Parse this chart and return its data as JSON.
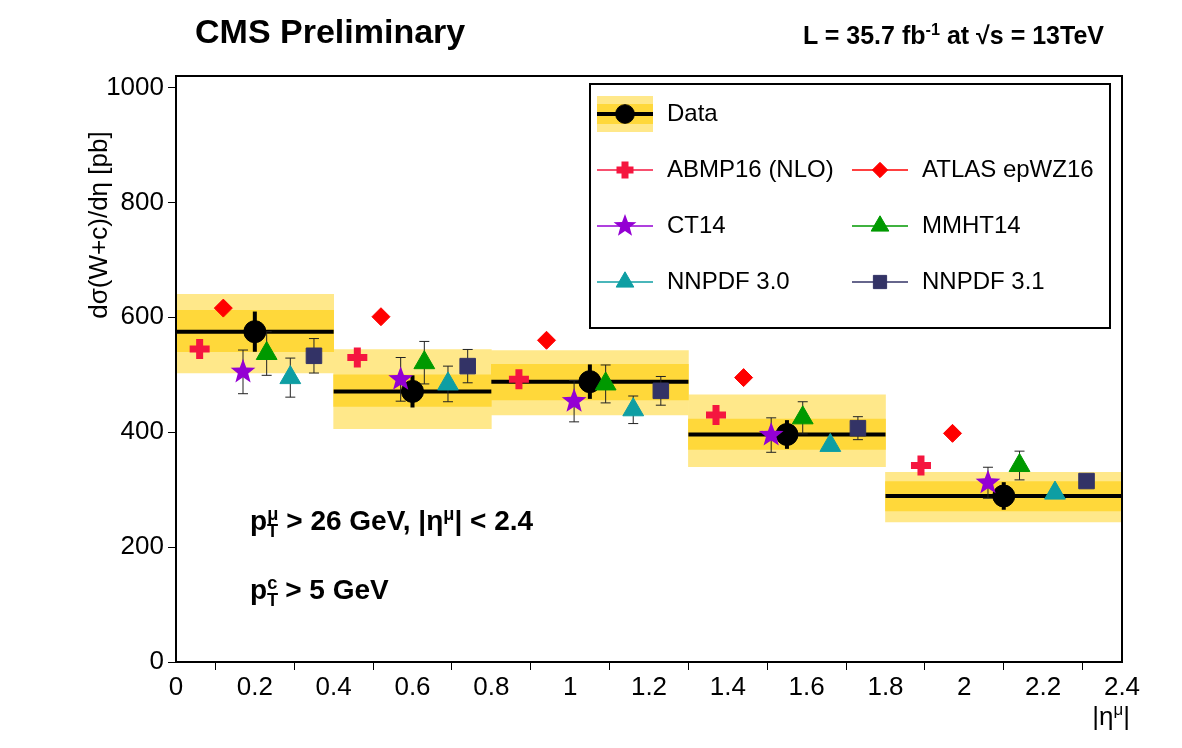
{
  "chart_data": {
    "type": "scatter",
    "title": "CMS Preliminary",
    "subtitle": "L = 35.7 fb$^{-1}$ at √s = 13TeV",
    "xlabel": "|η$^{μ}$|",
    "ylabel": "dσ(W+c)/dη  [pb]",
    "annotations": [
      "p$_{T}$$^{μ}$ > 26 GeV, |η$^{μ}$| < 2.4",
      "p$_{T}$$^{c}$ > 5 GeV"
    ],
    "xlim": [
      0,
      2.4
    ],
    "xticks": [
      0,
      0.2,
      0.4,
      0.6,
      0.8,
      1,
      1.2,
      1.4,
      1.6,
      1.8,
      2,
      2.2,
      2.4
    ],
    "ylim": [
      0,
      1020
    ],
    "yticks": [
      0,
      200,
      400,
      600,
      800,
      1000
    ],
    "grid": false,
    "legend": "top right",
    "series": [
      {
        "type": "bar",
        "color": "#ffe88a",
        "x": [
          0.2,
          0.6,
          1.05,
          1.55,
          2.1
        ],
        "base": [
          503,
          406,
          430,
          340,
          244
        ],
        "values": [
          137,
          138,
          112,
          125,
          86
        ]
      },
      {
        "type": "bar",
        "color": "#ffd83a",
        "x": [
          0.2,
          0.6,
          1.05,
          1.55,
          2.1
        ],
        "base": [
          540,
          445,
          456,
          370,
          263
        ],
        "values": [
          72,
          55,
          62,
          53,
          51
        ]
      },
      {
        "name": "Data",
        "color": "#000000",
        "marker": "circle",
        "x": [
          0.2,
          0.6,
          1.05,
          1.55,
          2.1
        ],
        "xerrors": [
          0.2,
          0.2,
          0.25,
          0.25,
          0.3
        ],
        "values": [
          575,
          471,
          488,
          396,
          289
        ],
        "errors": [
          35,
          28,
          30,
          25,
          24
        ]
      },
      {
        "name": "ABMP16 (NLO)",
        "color": "#f5163f",
        "marker": "cross",
        "x": [
          0.06,
          0.46,
          0.87,
          1.37,
          1.89
        ],
        "values": [
          545,
          530,
          492,
          430,
          342
        ]
      },
      {
        "name": "ATLAS epWZ16",
        "color": "#ff0000",
        "marker": "diamond",
        "x": [
          0.12,
          0.52,
          0.94,
          1.44,
          1.97
        ],
        "values": [
          616,
          601,
          560,
          495,
          398
        ]
      },
      {
        "name": "CT14",
        "color": "#9400d3",
        "marker": "star",
        "x": [
          0.17,
          0.57,
          1.01,
          1.51,
          2.06
        ],
        "values": [
          505,
          492,
          454,
          395,
          312
        ],
        "errors": [
          38,
          38,
          36,
          30,
          27
        ]
      },
      {
        "name": "MMHT14",
        "color": "#009900",
        "marker": "triangle",
        "x": [
          0.23,
          0.63,
          1.09,
          1.59,
          2.14
        ],
        "values": [
          537,
          521,
          484,
          425,
          342
        ],
        "errors": [
          38,
          37,
          33,
          28,
          25
        ]
      },
      {
        "name": "NNPDF 3.0",
        "color": "#0e9ea3",
        "marker": "triangle",
        "x": [
          0.29,
          0.69,
          1.16,
          1.66,
          2.23
        ],
        "values": [
          495,
          484,
          439,
          377,
          294
        ],
        "errors": [
          34,
          31,
          24,
          null,
          null
        ]
      },
      {
        "name": "NNPDF 3.1",
        "color": "#333366",
        "marker": "square",
        "x": [
          0.35,
          0.74,
          1.23,
          1.73,
          2.31
        ],
        "values": [
          533,
          515,
          472,
          407,
          315
        ],
        "errors": [
          30,
          29,
          25,
          20,
          null
        ]
      }
    ]
  }
}
